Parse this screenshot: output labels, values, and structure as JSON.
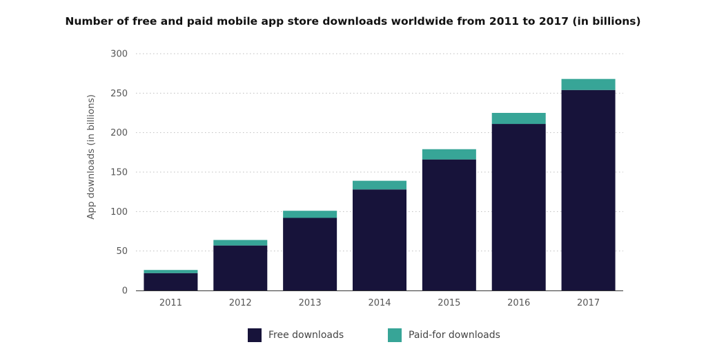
{
  "chart_data": {
    "type": "bar",
    "stacked": true,
    "title": "Number of free and paid mobile app store downloads worldwide from 2011 to 2017 (in billions)",
    "xlabel": "",
    "ylabel": "App downloads (in billions)",
    "ylim": [
      0,
      300
    ],
    "yticks": [
      0,
      50,
      100,
      150,
      200,
      250,
      300
    ],
    "grid": true,
    "legend_position": "bottom",
    "categories": [
      "2011",
      "2012",
      "2013",
      "2014",
      "2015",
      "2016",
      "2017"
    ],
    "series": [
      {
        "name": "Free downloads",
        "color": "#17133a",
        "values": [
          22,
          57,
          92,
          128,
          166,
          211,
          254
        ]
      },
      {
        "name": "Paid-for downloads",
        "color": "#37a597",
        "values": [
          4,
          7,
          9,
          11,
          13,
          14,
          14
        ]
      }
    ]
  }
}
